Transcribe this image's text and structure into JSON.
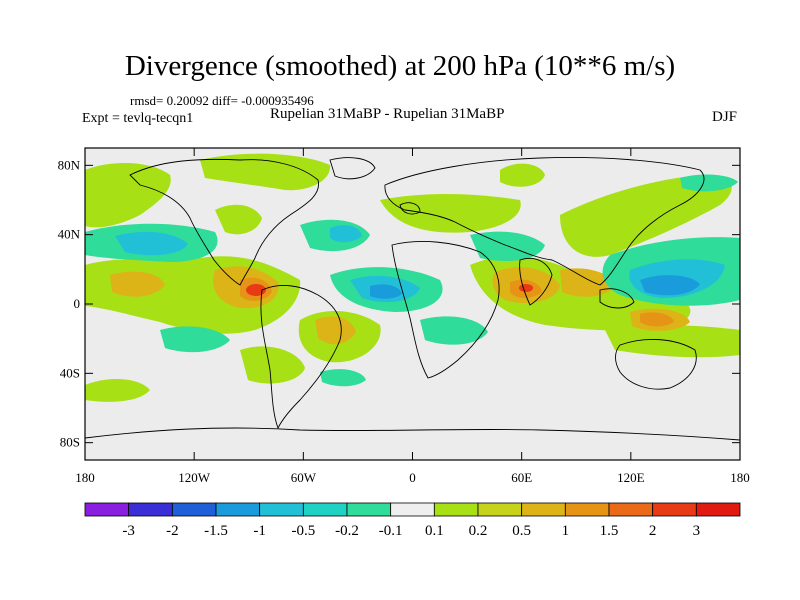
{
  "title": "Divergence (smoothed) at 200 hPa (10**6 m/s)",
  "stats": "rmsd= 0.20092 diff= -0.000935496",
  "experiment": "Expt = tevlq-tecqn1",
  "comparison": "Rupelian  31MaBP - Rupelian  31MaBP",
  "season": "DJF",
  "lat_labels": [
    "80N",
    "40N",
    "0",
    "40S",
    "80S"
  ],
  "lon_labels": [
    "180",
    "120W",
    "60W",
    "0",
    "60E",
    "120E",
    "180"
  ],
  "colorbar": {
    "labels": [
      "-3",
      "-2",
      "-1.5",
      "-1",
      "-0.5",
      "-0.2",
      "-0.1",
      "0.1",
      "0.2",
      "0.5",
      "1",
      "1.5",
      "2",
      "3"
    ],
    "colors": [
      "#8a1fe0",
      "#3a2fd6",
      "#1f5fd8",
      "#1a9bdc",
      "#22c0d6",
      "#1fd2c4",
      "#30dc9a",
      "#efefef",
      "#a8e016",
      "#c7d21a",
      "#dcb418",
      "#e69416",
      "#ea6a18",
      "#e83a14",
      "#e01a10"
    ]
  },
  "palette": {
    "neutral": "#ececec",
    "land_line": "#000000"
  }
}
